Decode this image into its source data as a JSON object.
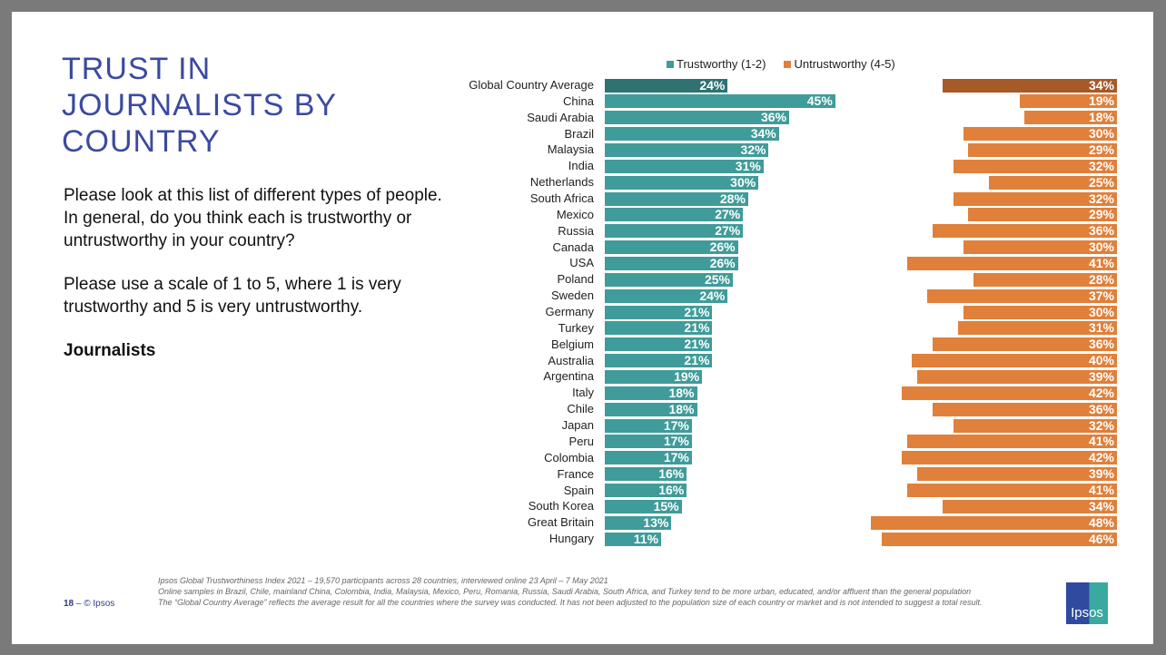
{
  "slide": {
    "title": "TRUST IN JOURNALISTS BY COUNTRY",
    "question1": "Please look at this list of different types of people. In general, do you think each is trustworthy or untrustworthy in your country?",
    "question2": "Please use a scale of 1 to 5, where 1 is very trustworthy and 5 is very untrustworthy.",
    "subject": "Journalists",
    "page_number": "18",
    "copyright": "– © Ipsos",
    "logo_text": "Ipsos",
    "footnotes": [
      "Ipsos Global Trustworthiness Index 2021 – 19,570 participants across 28 countries, interviewed online 23 April – 7 May 2021",
      "Online samples in Brazil, Chile, mainland China, Colombia, India, Malaysia, Mexico, Peru, Romania, Russia, Saudi Arabia, South Africa, and Turkey tend to be more urban, educated, and/or affluent than the general population",
      "The “Global Country Average” reflects the average result for all the countries where the survey was conducted. It has not been adjusted to the population size of each country or market and is not intended to suggest a total result."
    ]
  },
  "chart_data": {
    "type": "bar",
    "orientation": "horizontal",
    "legend_position": "top",
    "grid": false,
    "categories": [
      "Global Country Average",
      "China",
      "Saudi Arabia",
      "Brazil",
      "Malaysia",
      "India",
      "Netherlands",
      "South Africa",
      "Mexico",
      "Russia",
      "Canada",
      "USA",
      "Poland",
      "Sweden",
      "Germany",
      "Turkey",
      "Belgium",
      "Australia",
      "Argentina",
      "Italy",
      "Chile",
      "Japan",
      "Peru",
      "Colombia",
      "France",
      "Spain",
      "South Korea",
      "Great Britain",
      "Hungary"
    ],
    "series": [
      {
        "name": "Trustworthy (1-2)",
        "color": "#3f9c9a",
        "highlight_color": "#2e7272",
        "values": [
          24,
          45,
          36,
          34,
          32,
          31,
          30,
          28,
          27,
          27,
          26,
          26,
          25,
          24,
          21,
          21,
          21,
          21,
          19,
          18,
          18,
          17,
          17,
          17,
          16,
          16,
          15,
          13,
          11
        ]
      },
      {
        "name": "Untrustworthy (4-5)",
        "color": "#e0803a",
        "highlight_color": "#a65a28",
        "values": [
          34,
          19,
          18,
          30,
          29,
          32,
          25,
          32,
          29,
          36,
          30,
          41,
          28,
          37,
          30,
          31,
          36,
          40,
          39,
          42,
          36,
          32,
          41,
          42,
          39,
          41,
          34,
          48,
          46
        ]
      }
    ]
  }
}
